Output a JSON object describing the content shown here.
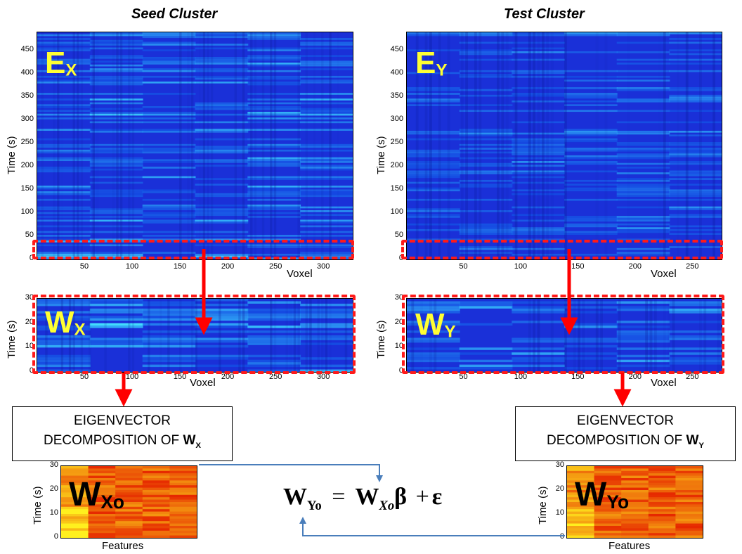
{
  "titles": {
    "seed": "Seed Cluster",
    "test": "Test Cluster"
  },
  "labels": {
    "time": "Time (s)",
    "voxel": "Voxel",
    "features": "Features"
  },
  "panels": {
    "ex": {
      "main": "E",
      "sub": "X"
    },
    "ey": {
      "main": "E",
      "sub": "Y"
    },
    "wx": {
      "main": "W",
      "sub": "X"
    },
    "wy": {
      "main": "W",
      "sub": "Y"
    },
    "wxo": {
      "main": "W",
      "sub": "Xo"
    },
    "wyo": {
      "main": "W",
      "sub": "Yo"
    }
  },
  "axes": {
    "big_y_ticks": [
      "450",
      "400",
      "350",
      "300",
      "250",
      "200",
      "150",
      "100",
      "50",
      "0"
    ],
    "small_y_ticks": [
      "30",
      "20",
      "10",
      "0"
    ],
    "seed_x_ticks": [
      "50",
      "100",
      "150",
      "200",
      "250",
      "300"
    ],
    "test_x_ticks": [
      "50",
      "100",
      "150",
      "200",
      "250"
    ]
  },
  "boxes": {
    "left_line1": "EIGENVECTOR",
    "left_line2": "DECOMPOSITION OF",
    "left_var": "W",
    "left_sub": "X",
    "right_line1": "EIGENVECTOR",
    "right_line2": "DECOMPOSITION OF",
    "right_var": "W",
    "right_sub": "Y"
  },
  "equation": {
    "lhs": "W",
    "lhs_sub": "Yo",
    "eq": "=",
    "rhs": "W",
    "rhs_sub": "Xo",
    "beta": "β",
    "plus": "+",
    "eps": "ε"
  },
  "colors": {
    "heatmap_blue": "#1a2fd6",
    "heatmap_orange": "#f04a10",
    "overlay_text": "#ffff33",
    "arrow_red": "#ff0000",
    "arrow_blue": "#4a7ebb"
  }
}
